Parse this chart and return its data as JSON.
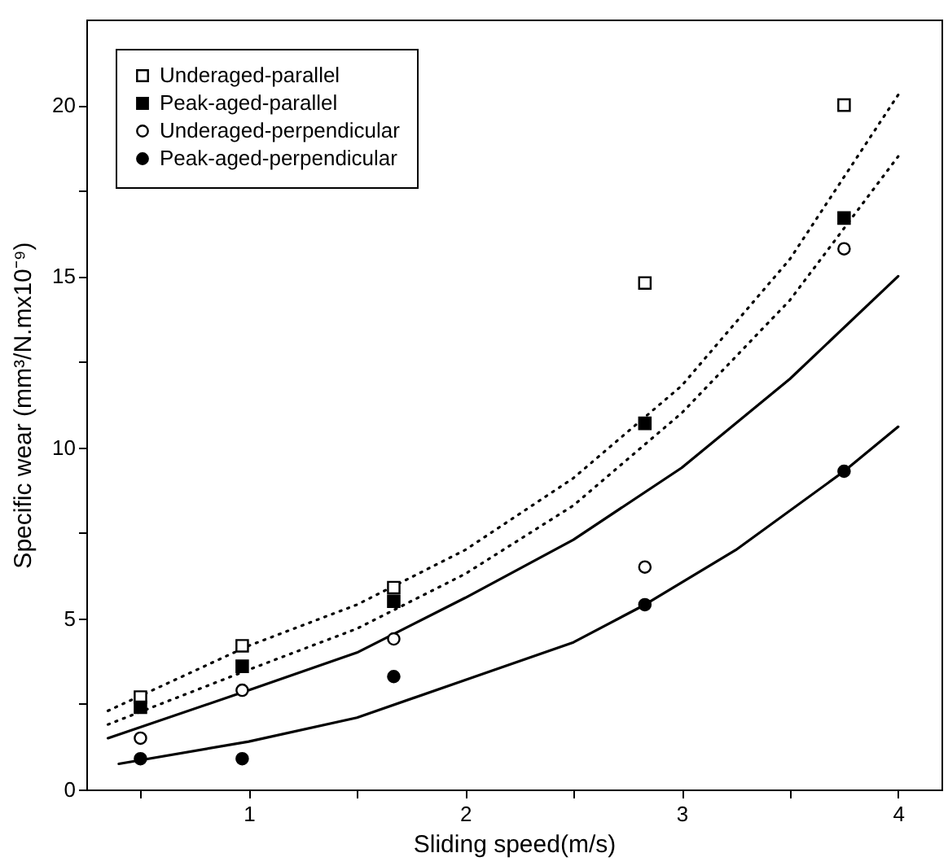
{
  "chart_data": {
    "type": "scatter",
    "xlabel": "Sliding speed(m/s)",
    "ylabel": "Specific wear (mm³/N.mx10⁻⁹)",
    "xlim": [
      0.25,
      4.2
    ],
    "ylim": [
      0,
      22.5
    ],
    "xticks": [
      {
        "value": 0.5,
        "label": null
      },
      1,
      {
        "value": 1.5,
        "label": null
      },
      2,
      {
        "value": 2.5,
        "label": null
      },
      3,
      {
        "value": 3.5,
        "label": null
      },
      4
    ],
    "yticks": [
      0,
      {
        "value": 2.5,
        "label": null
      },
      5,
      {
        "value": 7.5,
        "label": null
      },
      10,
      {
        "value": 12.5,
        "label": null
      },
      15,
      {
        "value": 17.5,
        "label": null
      },
      20
    ],
    "legend": "top left",
    "grid": false,
    "series": [
      {
        "name": "Underaged-parallel",
        "marker": "square",
        "color": "#ffffff",
        "x": [
          0.5,
          0.97,
          1.67,
          2.83,
          3.75
        ],
        "values": [
          2.7,
          4.2,
          5.9,
          14.8,
          20.0
        ]
      },
      {
        "name": "Peak-aged-parallel",
        "marker": "square",
        "color": "#000000",
        "x": [
          0.5,
          0.97,
          1.67,
          2.83,
          3.75
        ],
        "values": [
          2.4,
          3.6,
          5.5,
          10.7,
          16.7
        ]
      },
      {
        "name": "Underaged-perpendicular",
        "marker": "circle",
        "color": "#ffffff",
        "x": [
          0.5,
          0.97,
          1.67,
          2.83,
          3.75
        ],
        "values": [
          1.5,
          2.9,
          4.4,
          6.5,
          15.8
        ]
      },
      {
        "name": "Peak-aged-perpendicular",
        "marker": "circle",
        "color": "#000000",
        "x": [
          0.5,
          0.97,
          1.67,
          2.83,
          3.75
        ],
        "values": [
          0.9,
          0.9,
          3.3,
          5.4,
          9.3
        ]
      },
      {
        "type": "line",
        "line_style": "dotted",
        "marker": "none",
        "color": "#000000",
        "x": [
          0.35,
          1,
          1.5,
          2,
          2.5,
          3,
          3.5,
          4
        ],
        "values": [
          2.3,
          4.2,
          5.4,
          7.0,
          9.1,
          11.8,
          15.5,
          20.3
        ]
      },
      {
        "type": "line",
        "line_style": "dotted",
        "marker": "none",
        "color": "#000000",
        "x": [
          0.35,
          1,
          1.5,
          2,
          2.5,
          3,
          3.5,
          4
        ],
        "values": [
          1.9,
          3.5,
          4.7,
          6.3,
          8.3,
          11.0,
          14.3,
          18.5
        ]
      },
      {
        "type": "line",
        "line_style": "solid",
        "marker": "none",
        "color": "#000000",
        "x": [
          0.35,
          1,
          1.5,
          2,
          2.5,
          3,
          3.5,
          4
        ],
        "values": [
          1.5,
          2.9,
          4.0,
          5.6,
          7.3,
          9.4,
          12.0,
          15.0
        ]
      },
      {
        "type": "line",
        "line_style": "solid",
        "marker": "none",
        "color": "#000000",
        "x": [
          0.4,
          1,
          1.5,
          2,
          2.5,
          2.83,
          3.25,
          3.75,
          4
        ],
        "values": [
          0.75,
          1.4,
          2.1,
          3.2,
          4.3,
          5.4,
          7.0,
          9.3,
          10.6
        ]
      }
    ]
  }
}
